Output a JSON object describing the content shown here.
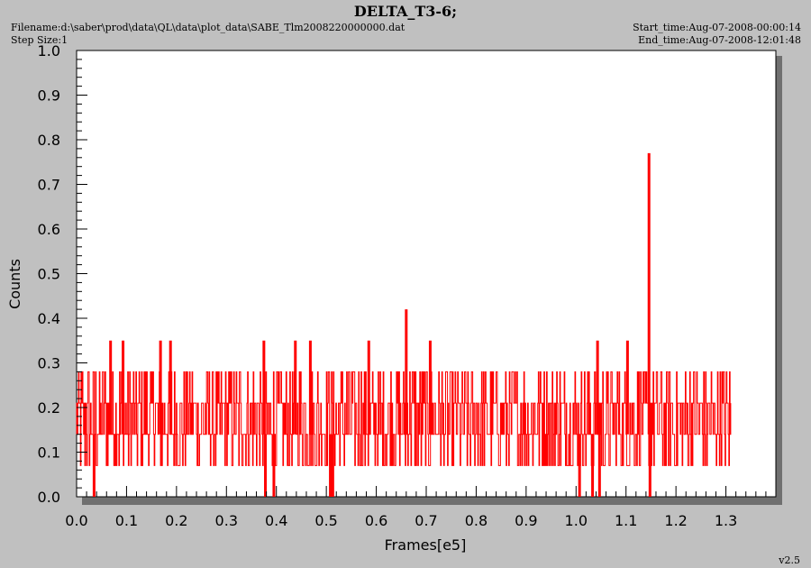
{
  "header": {
    "title": "DELTA_T3-6;",
    "filename": "Filename:d:\\saber\\prod\\data\\QL\\data\\plot_data\\SABE_Tlm2008220000000.dat",
    "step_size": "Step Size:1",
    "start_time": "Start_time:Aug-07-2008-00:00:14",
    "end_time": "End_time:Aug-07-2008-12:01:48",
    "version": "v2.5"
  },
  "colors": {
    "background": "#c0c0c0",
    "plot_area": "#ffffff",
    "series": "#ff0000",
    "shadow": "#707070"
  },
  "chart_data": {
    "type": "line",
    "xlabel": "Frames[e5]",
    "ylabel": "Counts",
    "xlim": [
      0.0,
      1.4
    ],
    "ylim": [
      0.0,
      1.0
    ],
    "x_ticks": [
      "0.0",
      "0.1",
      "0.2",
      "0.3",
      "0.4",
      "0.5",
      "0.6",
      "0.7",
      "0.8",
      "0.9",
      "1.0",
      "1.1",
      "1.2",
      "1.3"
    ],
    "y_ticks": [
      "0.0",
      "0.1",
      "0.2",
      "0.3",
      "0.4",
      "0.5",
      "0.6",
      "0.7",
      "0.8",
      "0.9",
      "1.0"
    ],
    "grid": false,
    "series": [
      {
        "x_range": [
          0.0,
          1.31
        ],
        "levels": [
          0.07,
          0.14,
          0.21,
          0.28
        ],
        "spikes": [
          {
            "x": 0.068,
            "y": 0.35
          },
          {
            "x": 0.093,
            "y": 0.35
          },
          {
            "x": 0.168,
            "y": 0.35
          },
          {
            "x": 0.188,
            "y": 0.35
          },
          {
            "x": 0.375,
            "y": 0.35
          },
          {
            "x": 0.438,
            "y": 0.35
          },
          {
            "x": 0.468,
            "y": 0.35
          },
          {
            "x": 0.585,
            "y": 0.35
          },
          {
            "x": 0.66,
            "y": 0.42
          },
          {
            "x": 0.708,
            "y": 0.35
          },
          {
            "x": 1.043,
            "y": 0.35
          },
          {
            "x": 1.103,
            "y": 0.35
          },
          {
            "x": 1.146,
            "y": 0.77
          }
        ],
        "dropouts": [
          0.035,
          0.378,
          0.395,
          0.508,
          0.513,
          1.007,
          1.033,
          1.047,
          1.148
        ]
      }
    ]
  }
}
